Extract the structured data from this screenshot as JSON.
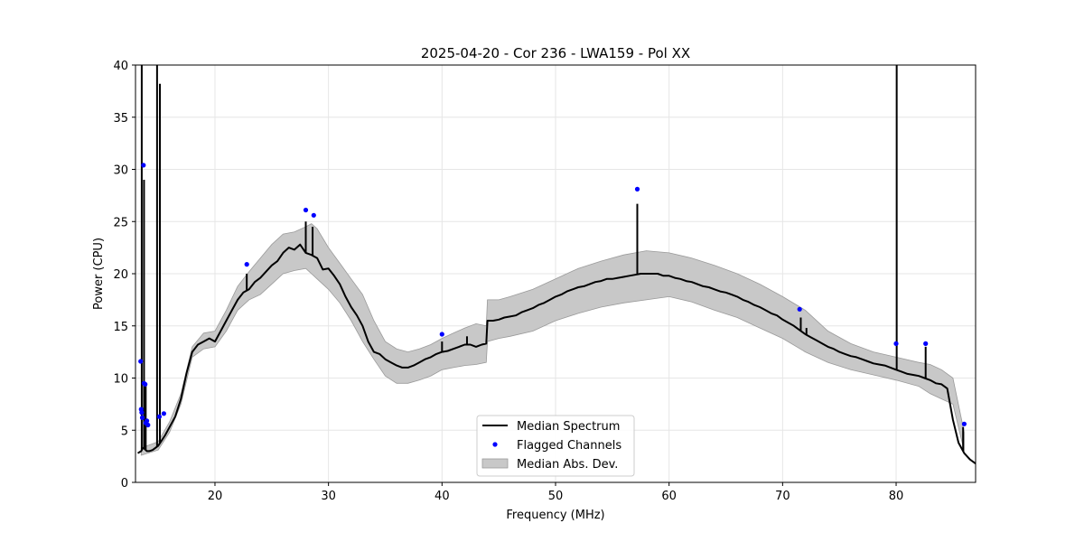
{
  "chart_data": {
    "type": "line",
    "title": "2025-04-20 - Cor 236 - LWA159 - Pol XX",
    "xlabel": "Frequency (MHz)",
    "ylabel": "Power (CPU)",
    "xlim": [
      13.0,
      87.0
    ],
    "ylim": [
      0,
      40
    ],
    "xticks": [
      20,
      30,
      40,
      50,
      60,
      70,
      80
    ],
    "yticks": [
      0,
      5,
      10,
      15,
      20,
      25,
      30,
      35,
      40
    ],
    "grid": true,
    "legend_position": "bottom-center",
    "legend": [
      "Median Spectrum",
      "Flagged Channels",
      "Median Abs. Dev."
    ],
    "series": [
      {
        "name": "Median Spectrum",
        "color": "#000000",
        "x": [
          13.2,
          13.5,
          13.6,
          13.7,
          13.8,
          13.9,
          14.0,
          14.2,
          14.5,
          15.0,
          15.3,
          15.6,
          16.0,
          16.5,
          17.0,
          17.5,
          18.0,
          18.5,
          19.0,
          19.5,
          20.0,
          20.5,
          21.0,
          21.5,
          22.0,
          22.5,
          23.0,
          23.5,
          24.0,
          24.5,
          25.0,
          25.5,
          26.0,
          26.5,
          27.0,
          27.5,
          28.0,
          28.5,
          29.0,
          29.5,
          30.0,
          30.5,
          31.0,
          31.5,
          32.0,
          32.5,
          33.0,
          33.5,
          34.0,
          34.5,
          35.0,
          35.5,
          36.0,
          36.5,
          37.0,
          37.5,
          38.0,
          38.5,
          39.0,
          39.5,
          40.0,
          40.5,
          41.0,
          41.5,
          42.0,
          42.5,
          43.0,
          43.5,
          43.9,
          44.0,
          44.5,
          45.0,
          45.5,
          46.0,
          46.5,
          47.0,
          47.5,
          48.0,
          48.5,
          49.0,
          49.5,
          50.0,
          50.5,
          51.0,
          51.5,
          52.0,
          52.5,
          53.0,
          53.5,
          54.0,
          54.5,
          55.0,
          55.5,
          56.0,
          56.5,
          57.0,
          57.5,
          58.0,
          58.5,
          59.0,
          59.5,
          60.0,
          60.5,
          61.0,
          61.5,
          62.0,
          62.5,
          63.0,
          63.5,
          64.0,
          64.5,
          65.0,
          65.5,
          66.0,
          66.5,
          67.0,
          67.5,
          68.0,
          68.5,
          69.0,
          69.5,
          70.0,
          70.5,
          71.0,
          71.5,
          72.0,
          72.5,
          73.0,
          73.5,
          74.0,
          74.5,
          75.0,
          75.5,
          76.0,
          76.5,
          77.0,
          77.5,
          78.0,
          78.5,
          79.0,
          79.5,
          80.0,
          80.5,
          81.0,
          81.5,
          82.0,
          82.5,
          83.0,
          83.5,
          84.0,
          84.5,
          85.0,
          85.5,
          86.0,
          86.5,
          87.0
        ],
        "y": [
          2.8,
          3.0,
          3.2,
          3.3,
          3.2,
          3.1,
          3.0,
          3.0,
          3.1,
          3.5,
          4.0,
          4.5,
          5.3,
          6.3,
          8.0,
          10.5,
          12.5,
          13.2,
          13.5,
          13.8,
          13.5,
          14.5,
          15.5,
          16.5,
          17.5,
          18.2,
          18.5,
          19.2,
          19.6,
          20.2,
          20.8,
          21.2,
          22.0,
          22.5,
          22.3,
          22.8,
          22.0,
          21.8,
          21.5,
          20.4,
          20.5,
          19.8,
          19.0,
          17.8,
          16.8,
          16.0,
          15.0,
          13.5,
          12.5,
          12.3,
          11.8,
          11.5,
          11.2,
          11.0,
          11.0,
          11.2,
          11.5,
          11.8,
          12.0,
          12.3,
          12.5,
          12.6,
          12.8,
          13.0,
          13.2,
          13.2,
          13.0,
          13.2,
          13.3,
          15.5,
          15.5,
          15.6,
          15.8,
          15.9,
          16.0,
          16.3,
          16.5,
          16.7,
          17.0,
          17.2,
          17.5,
          17.8,
          18.0,
          18.3,
          18.5,
          18.7,
          18.8,
          19.0,
          19.2,
          19.3,
          19.5,
          19.5,
          19.6,
          19.7,
          19.8,
          19.9,
          20.0,
          20.0,
          20.0,
          20.0,
          19.8,
          19.8,
          19.6,
          19.5,
          19.3,
          19.2,
          19.0,
          18.8,
          18.7,
          18.5,
          18.3,
          18.2,
          18.0,
          17.8,
          17.5,
          17.3,
          17.0,
          16.8,
          16.5,
          16.2,
          16.0,
          15.6,
          15.3,
          15.0,
          14.6,
          14.2,
          13.9,
          13.6,
          13.3,
          13.0,
          12.8,
          12.5,
          12.3,
          12.1,
          12.0,
          11.8,
          11.6,
          11.4,
          11.3,
          11.2,
          11.0,
          10.8,
          10.6,
          10.4,
          10.3,
          10.2,
          10.0,
          9.8,
          9.5,
          9.4,
          9.0,
          6.0,
          3.8,
          2.8,
          2.2,
          1.8
        ]
      },
      {
        "name": "Median Abs. Dev.",
        "color": "#c8c8c8",
        "x": [
          13.5,
          15.0,
          16.0,
          17.0,
          18.0,
          19.0,
          20.0,
          21.0,
          22.0,
          23.0,
          24.0,
          25.0,
          26.0,
          27.0,
          28.0,
          28.5,
          29.0,
          30.0,
          31.0,
          32.0,
          33.0,
          34.0,
          35.0,
          36.0,
          37.0,
          38.0,
          39.0,
          40.0,
          41.0,
          42.0,
          43.0,
          43.9,
          44.0,
          45.0,
          46.0,
          48.0,
          50.0,
          52.0,
          54.0,
          56.0,
          58.0,
          60.0,
          62.0,
          64.0,
          66.0,
          68.0,
          70.0,
          72.0,
          74.0,
          76.0,
          78.0,
          80.0,
          82.0,
          83.0,
          84.0,
          85.0,
          86.0
        ],
        "upper": [
          3.3,
          3.9,
          5.8,
          8.5,
          13.0,
          14.3,
          14.5,
          16.5,
          18.8,
          20.2,
          21.5,
          22.8,
          23.8,
          24.0,
          24.5,
          24.8,
          24.3,
          22.5,
          21.0,
          19.5,
          18.0,
          15.5,
          13.5,
          12.8,
          12.5,
          12.8,
          13.2,
          13.8,
          14.3,
          14.8,
          15.2,
          15.0,
          17.5,
          17.5,
          17.8,
          18.5,
          19.5,
          20.5,
          21.2,
          21.8,
          22.2,
          22.0,
          21.5,
          20.8,
          20.0,
          19.0,
          17.8,
          16.5,
          14.5,
          13.3,
          12.5,
          12.0,
          11.5,
          11.3,
          10.8,
          10.0,
          4.8
        ],
        "lower": [
          2.6,
          3.1,
          4.8,
          7.5,
          12.0,
          12.8,
          13.0,
          14.5,
          16.5,
          17.5,
          18.0,
          19.0,
          20.0,
          20.3,
          20.5,
          20.0,
          19.5,
          18.5,
          17.2,
          15.5,
          13.5,
          11.8,
          10.2,
          9.5,
          9.5,
          9.8,
          10.2,
          10.8,
          11.0,
          11.2,
          11.3,
          11.5,
          13.5,
          13.8,
          14.0,
          14.5,
          15.5,
          16.2,
          16.8,
          17.2,
          17.5,
          17.8,
          17.3,
          16.5,
          15.8,
          14.8,
          13.8,
          12.5,
          11.5,
          10.8,
          10.3,
          9.8,
          9.2,
          8.5,
          8.0,
          7.5,
          3.0
        ]
      }
    ],
    "spikes": [
      {
        "x": 13.55,
        "top": 40
      },
      {
        "x": 13.75,
        "top": 29
      },
      {
        "x": 13.9,
        "top": 9.5
      },
      {
        "x": 14.9,
        "top": 40
      },
      {
        "x": 15.15,
        "top": 38.2
      },
      {
        "x": 22.8,
        "top": 20
      },
      {
        "x": 28.0,
        "top": 25
      },
      {
        "x": 28.6,
        "top": 24.5
      },
      {
        "x": 40.0,
        "top": 13.5
      },
      {
        "x": 42.2,
        "top": 14.0
      },
      {
        "x": 57.2,
        "top": 26.7
      },
      {
        "x": 71.6,
        "top": 15.8
      },
      {
        "x": 72.1,
        "top": 14.8
      },
      {
        "x": 80.05,
        "top": 40
      },
      {
        "x": 82.6,
        "top": 13.0
      },
      {
        "x": 85.9,
        "top": 5.3
      }
    ],
    "flagged_channels": {
      "name": "Flagged Channels",
      "color": "#0000ff",
      "x": [
        13.45,
        13.5,
        13.55,
        13.6,
        13.7,
        13.75,
        13.85,
        13.9,
        14.0,
        14.1,
        15.1,
        15.5,
        22.8,
        28.0,
        28.7,
        40.0,
        57.2,
        71.5,
        80.0,
        82.6,
        86.0
      ],
      "y": [
        11.6,
        7.0,
        6.7,
        6.2,
        30.4,
        9.5,
        9.4,
        5.7,
        5.9,
        5.5,
        6.3,
        6.6,
        20.9,
        26.1,
        25.6,
        14.2,
        28.1,
        16.6,
        13.3,
        13.3,
        5.6
      ]
    }
  }
}
